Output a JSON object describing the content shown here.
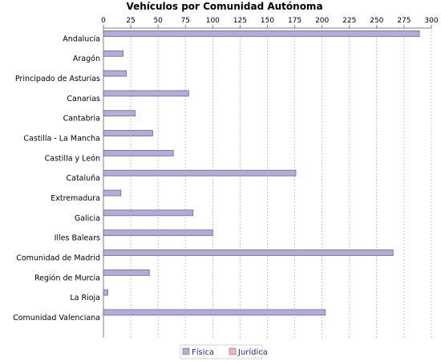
{
  "chart_data": {
    "type": "bar",
    "orientation": "horizontal",
    "title": "Vehículos por Comunidad Autónoma",
    "xlabel": "",
    "ylabel": "",
    "xlim": [
      0,
      300
    ],
    "x_ticks": [
      0,
      25,
      50,
      75,
      100,
      125,
      150,
      175,
      200,
      225,
      250,
      275,
      300
    ],
    "x_axis_position": "top",
    "grid": true,
    "legend_position": "bottom",
    "categories": [
      "Andalucía",
      "Aragón",
      "Principado de Asturias",
      "Canarias",
      "Cantabria",
      "Castilla - La Mancha",
      "Castilla y León",
      "Cataluña",
      "Extremadura",
      "Galicia",
      "Illes Balears",
      "Comunidad de Madrid",
      "Región de Murcia",
      "La Rioja",
      "Comunidad Valenciana"
    ],
    "series": [
      {
        "name": "Física",
        "color": "#b4acd8",
        "values": [
          289,
          18,
          21,
          78,
          29,
          45,
          64,
          176,
          16,
          82,
          100,
          265,
          42,
          4,
          203
        ]
      },
      {
        "name": "Jurídica",
        "color": "#f4b4b4",
        "values": [
          0,
          0,
          0,
          0,
          0,
          0,
          0,
          0,
          0,
          0,
          0,
          0,
          0,
          0,
          0
        ]
      }
    ]
  }
}
